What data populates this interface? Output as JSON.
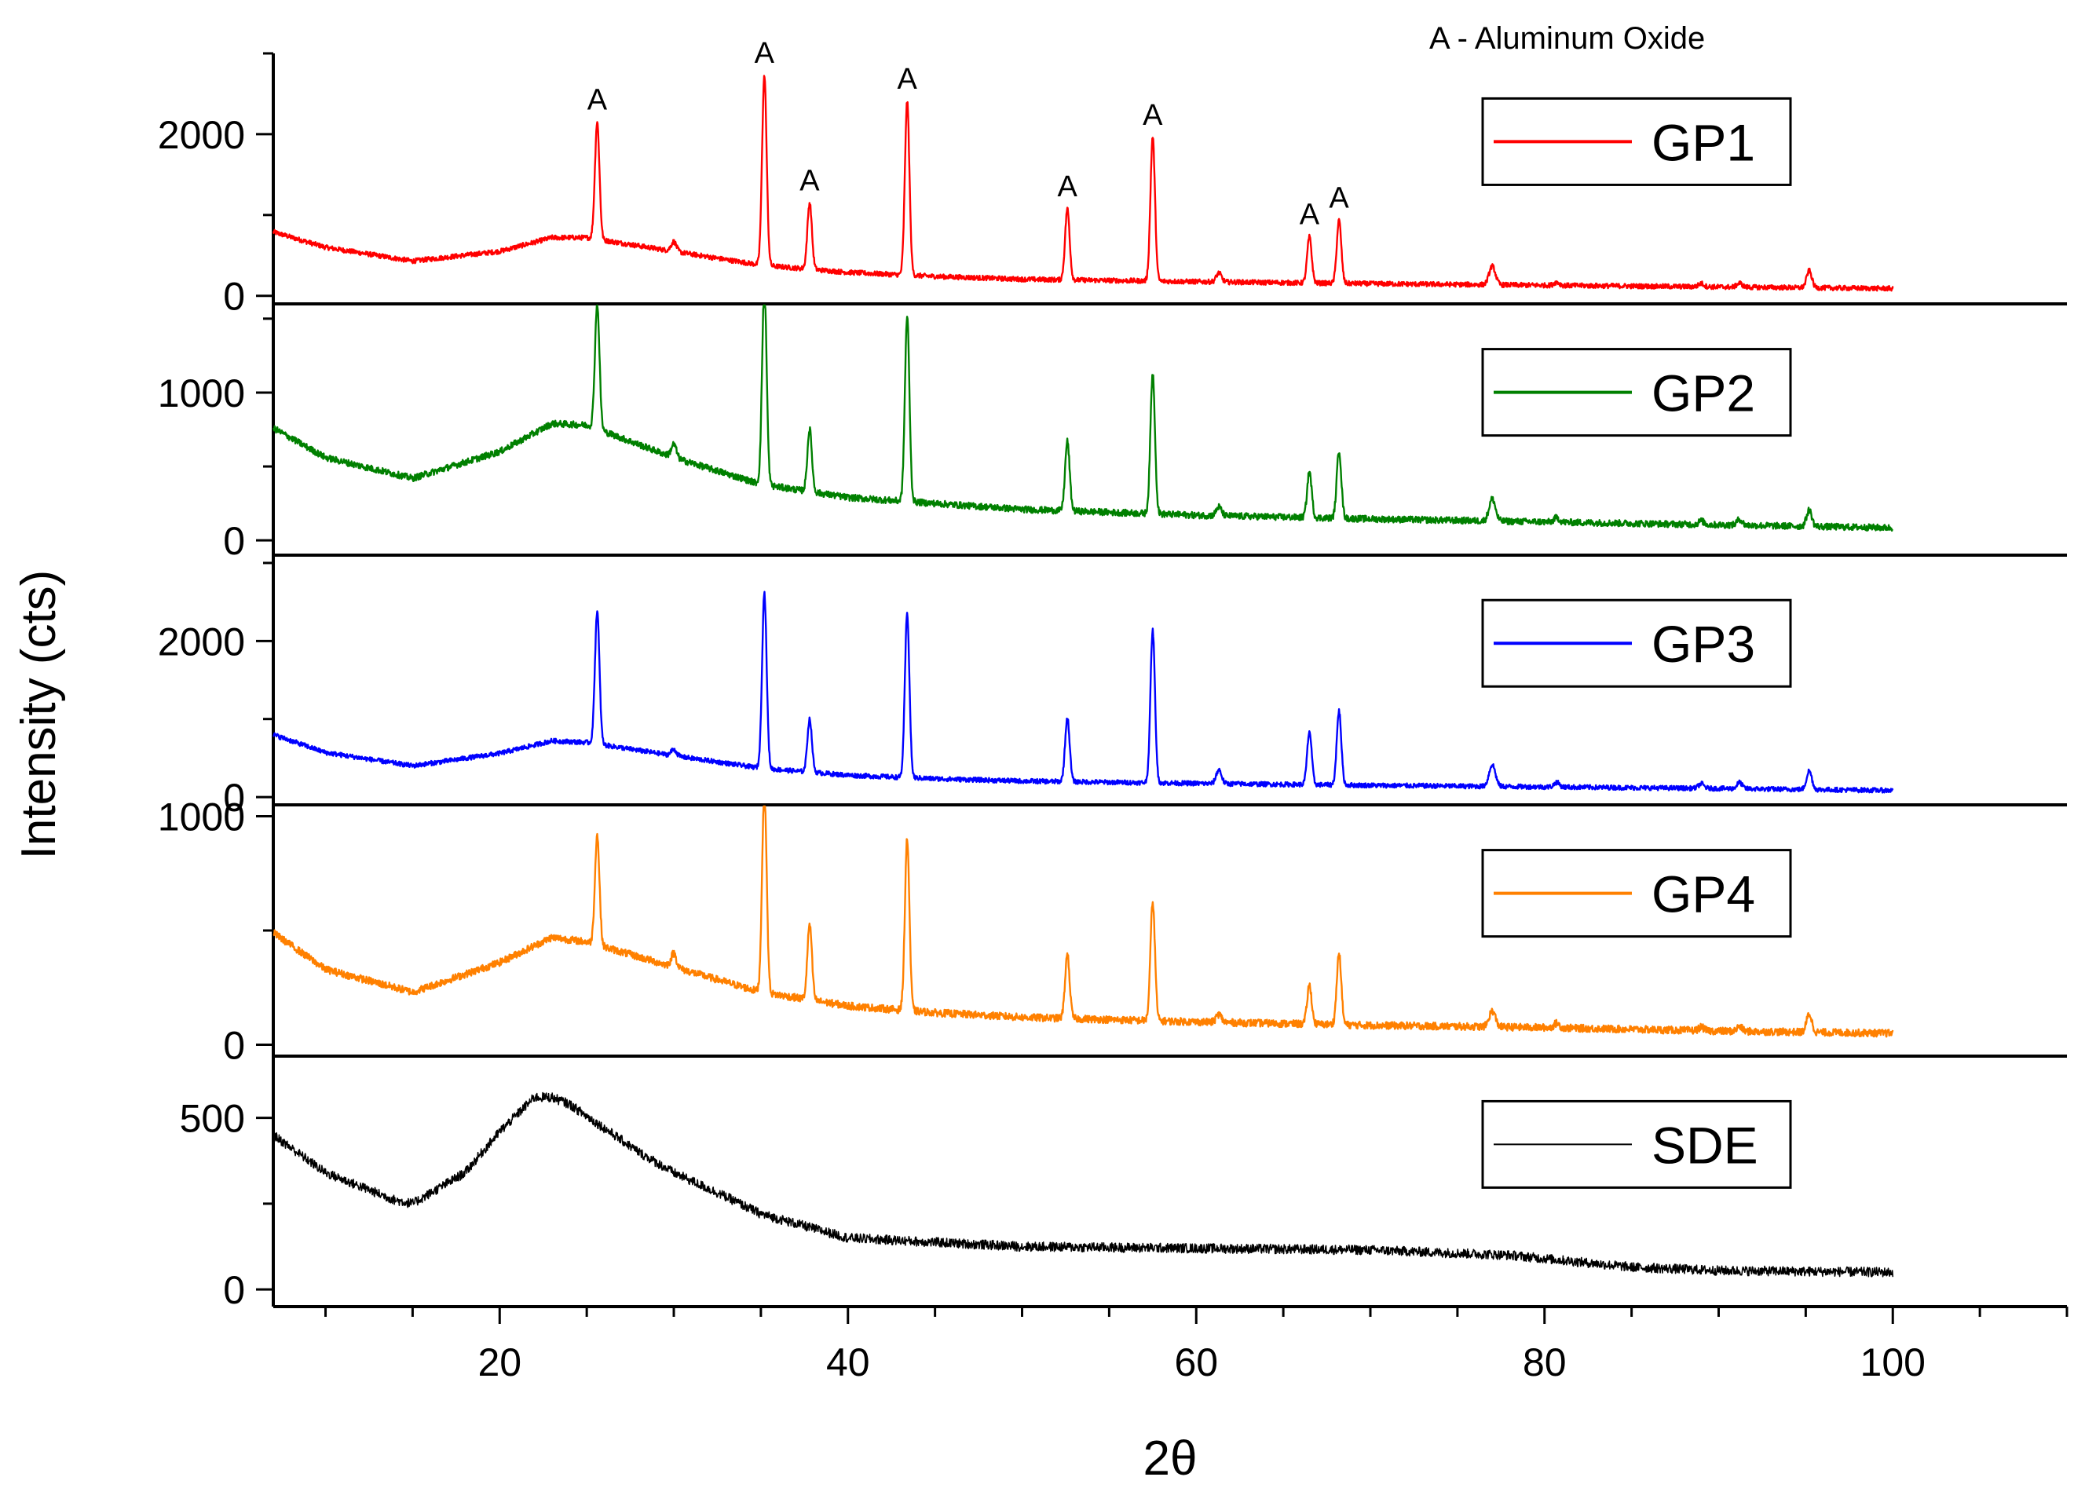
{
  "chart_data": {
    "type": "line",
    "title": "",
    "xlabel": "2θ",
    "ylabel": "Intensity (cts)",
    "xlim": [
      7,
      110
    ],
    "x_ticks": [
      20,
      40,
      60,
      80,
      100
    ],
    "x_tick_labels": [
      "20",
      "40",
      "60",
      "80",
      "100"
    ],
    "annotation": "A - Aluminum Oxide",
    "peak_marker": "A",
    "peak_marker_positions": [
      25.6,
      35.2,
      37.8,
      43.4,
      52.6,
      57.5,
      66.5,
      68.2
    ],
    "peaks": [
      {
        "x": 25.6,
        "w": 0.13,
        "h": [
          1450,
          850,
          1700,
          480,
          0
        ]
      },
      {
        "x": 35.2,
        "w": 0.13,
        "h": [
          2350,
          1350,
          2250,
          900,
          0
        ]
      },
      {
        "x": 37.8,
        "w": 0.13,
        "h": [
          820,
          420,
          680,
          330,
          0
        ]
      },
      {
        "x": 43.4,
        "w": 0.13,
        "h": [
          2150,
          1250,
          2100,
          750,
          0
        ]
      },
      {
        "x": 52.6,
        "w": 0.13,
        "h": [
          880,
          470,
          820,
          280,
          0
        ]
      },
      {
        "x": 57.5,
        "w": 0.13,
        "h": [
          1780,
          950,
          1950,
          520,
          0
        ]
      },
      {
        "x": 66.5,
        "w": 0.13,
        "h": [
          570,
          310,
          680,
          170,
          0
        ]
      },
      {
        "x": 68.2,
        "w": 0.13,
        "h": [
          780,
          460,
          950,
          310,
          0
        ]
      },
      {
        "x": 30.0,
        "w": 0.15,
        "h": [
          120,
          90,
          80,
          60,
          0
        ]
      },
      {
        "x": 61.3,
        "w": 0.15,
        "h": [
          110,
          60,
          180,
          35,
          0
        ]
      },
      {
        "x": 77.0,
        "w": 0.18,
        "h": [
          230,
          150,
          280,
          70,
          0
        ]
      },
      {
        "x": 95.2,
        "w": 0.15,
        "h": [
          210,
          110,
          240,
          80,
          0
        ]
      },
      {
        "x": 80.7,
        "w": 0.15,
        "h": [
          40,
          30,
          60,
          20,
          0
        ]
      },
      {
        "x": 91.2,
        "w": 0.15,
        "h": [
          50,
          40,
          80,
          20,
          0
        ]
      },
      {
        "x": 89.0,
        "w": 0.15,
        "h": [
          40,
          25,
          60,
          15,
          0
        ]
      }
    ],
    "series": [
      {
        "name": "GP1",
        "color": "#ff0000",
        "ylim": [
          -100,
          3000
        ],
        "y_ticks": [
          0,
          2000
        ],
        "y_tick_labels": [
          "0",
          "2000"
        ],
        "profile": {
          "x": [
            7,
            10,
            15,
            20,
            23,
            25,
            30,
            35,
            40,
            45,
            50,
            55,
            60,
            70,
            80,
            90,
            100
          ],
          "y": [
            790,
            600,
            430,
            550,
            720,
            720,
            550,
            380,
            290,
            240,
            205,
            190,
            175,
            150,
            130,
            110,
            90
          ]
        },
        "noise": 30
      },
      {
        "name": "GP2",
        "color": "#008000",
        "ylim": [
          -100,
          1600
        ],
        "y_ticks": [
          0,
          1000
        ],
        "y_tick_labels": [
          "0",
          "1000"
        ],
        "profile": {
          "x": [
            7,
            10,
            15,
            20,
            23,
            25,
            30,
            35,
            40,
            45,
            50,
            55,
            60,
            70,
            80,
            90,
            100
          ],
          "y": [
            760,
            560,
            420,
            600,
            790,
            780,
            560,
            380,
            290,
            250,
            210,
            190,
            170,
            145,
            125,
            105,
            85
          ]
        },
        "noise": 22
      },
      {
        "name": "GP3",
        "color": "#0000ff",
        "ylim": [
          -100,
          3100
        ],
        "y_ticks": [
          0,
          2000
        ],
        "y_tick_labels": [
          "0",
          "2000"
        ],
        "profile": {
          "x": [
            7,
            10,
            15,
            20,
            23,
            25,
            30,
            35,
            40,
            45,
            50,
            55,
            60,
            70,
            80,
            90,
            100
          ],
          "y": [
            800,
            570,
            400,
            560,
            720,
            700,
            530,
            370,
            280,
            235,
            205,
            190,
            175,
            150,
            130,
            110,
            85
          ]
        },
        "noise": 30
      },
      {
        "name": "GP4",
        "color": "#ff8000",
        "ylim": [
          -50,
          1050
        ],
        "y_ticks": [
          0,
          1000
        ],
        "y_tick_labels": [
          "0",
          "1000"
        ],
        "profile": {
          "x": [
            7,
            10,
            15,
            20,
            23,
            25,
            30,
            35,
            40,
            45,
            50,
            55,
            60,
            70,
            80,
            90,
            100
          ],
          "y": [
            490,
            330,
            230,
            360,
            470,
            450,
            340,
            230,
            170,
            140,
            120,
            110,
            100,
            85,
            75,
            60,
            50
          ]
        },
        "noise": 16
      },
      {
        "name": "SDE",
        "color": "#000000",
        "ylim": [
          -50,
          680
        ],
        "y_ticks": [
          0,
          500
        ],
        "y_tick_labels": [
          "0",
          "500"
        ],
        "profile": {
          "x": [
            7,
            10,
            14,
            15,
            18,
            20,
            22,
            23,
            24,
            26,
            28,
            30,
            33,
            35,
            40,
            50,
            60,
            70,
            78,
            80,
            85,
            90,
            100
          ],
          "y": [
            450,
            340,
            260,
            250,
            340,
            460,
            560,
            560,
            540,
            470,
            400,
            340,
            270,
            220,
            150,
            125,
            120,
            115,
            100,
            90,
            65,
            55,
            50
          ]
        },
        "noise": 14
      }
    ]
  }
}
